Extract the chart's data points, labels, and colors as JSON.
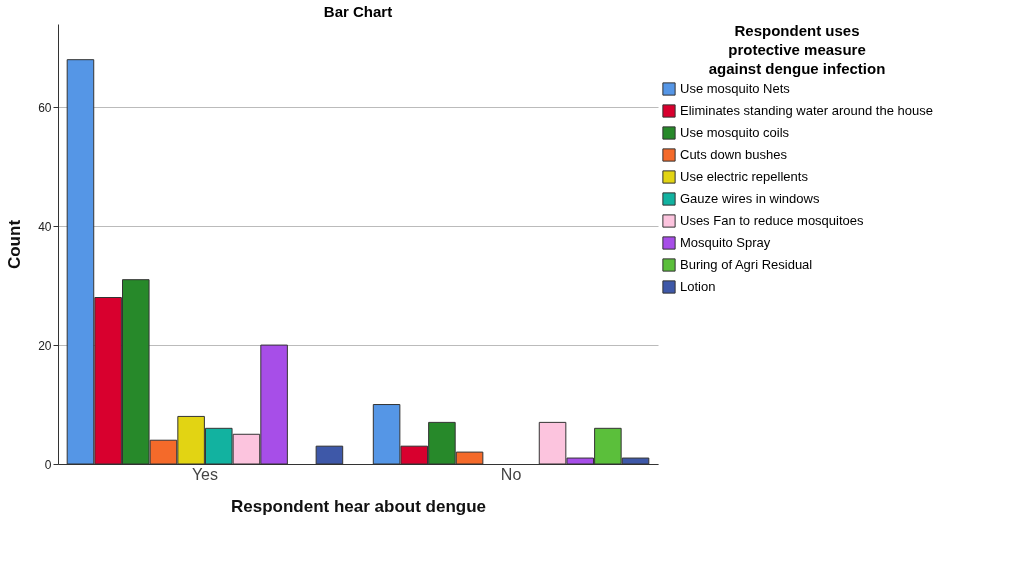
{
  "chart_data": {
    "type": "bar",
    "title": "Bar Chart",
    "xlabel": "Respondent hear about dengue",
    "ylabel": "Count",
    "legend_title": "Respondent uses protective measure against dengue infection",
    "categories": [
      "Yes",
      "No"
    ],
    "series": [
      {
        "name": "Use mosquito Nets",
        "color": "#5596e6",
        "values": [
          68,
          10
        ]
      },
      {
        "name": "Eliminates standing water around the house",
        "color": "#d8002e",
        "values": [
          28,
          3
        ]
      },
      {
        "name": "Use mosquito coils",
        "color": "#27892a",
        "values": [
          31,
          7
        ]
      },
      {
        "name": "Cuts down bushes",
        "color": "#f46a2a",
        "values": [
          4,
          2
        ]
      },
      {
        "name": "Use electric repellents",
        "color": "#e2d413",
        "values": [
          8,
          null
        ]
      },
      {
        "name": "Gauze wires in windows",
        "color": "#12b2a0",
        "values": [
          6,
          null
        ]
      },
      {
        "name": "Uses Fan to reduce mosquitoes",
        "color": "#fcc4de",
        "values": [
          5,
          7
        ]
      },
      {
        "name": "Mosquito Spray",
        "color": "#a74ee8",
        "values": [
          20,
          1
        ]
      },
      {
        "name": "Buring of Agri Residual",
        "color": "#5bbf3b",
        "values": [
          null,
          6
        ]
      },
      {
        "name": "Lotion",
        "color": "#3e58a8",
        "values": [
          3,
          1
        ]
      }
    ],
    "ylim": [
      0,
      74
    ],
    "yticks": [
      0,
      20,
      40,
      60
    ],
    "grid": "y",
    "legend": "top right"
  }
}
